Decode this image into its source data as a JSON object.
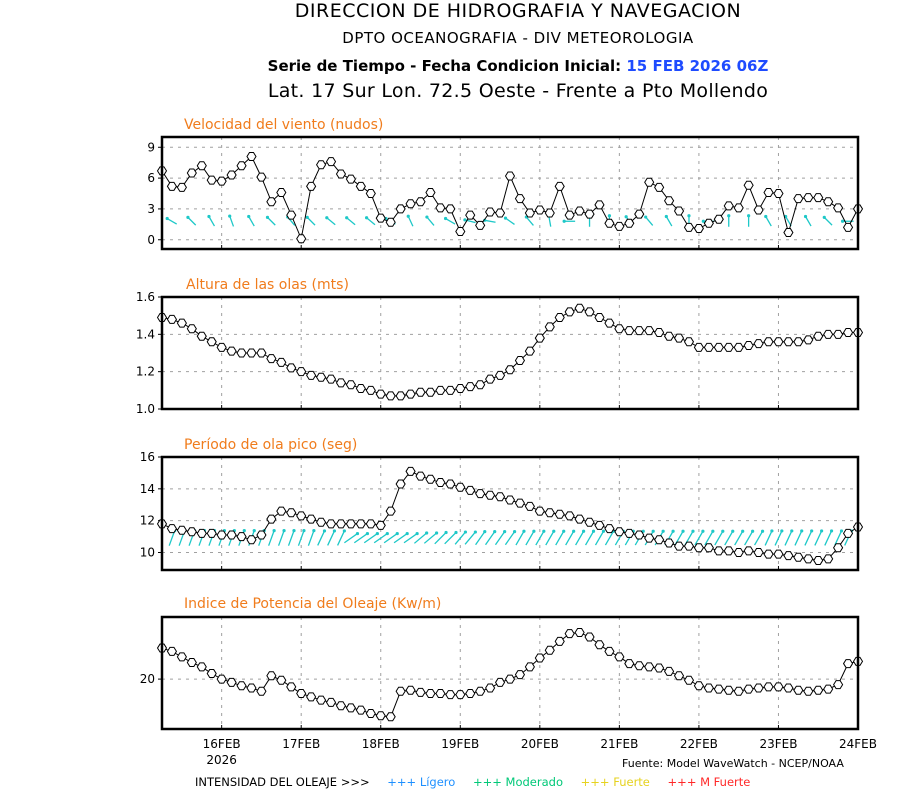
{
  "header": {
    "title": "DIRECCION DE HIDROGRAFIA Y NAVEGACION",
    "subtitle": "DPTO OCEANOGRAFIA - DIV METEOROLOGIA",
    "series_label": "Serie de Tiempo - Fecha Condicion Inicial:",
    "init_date": "15 FEB 2026 06Z",
    "location": "Lat. 17 Sur  Lon. 72.5 Oeste - Frente a Pto Mollendo"
  },
  "footer": {
    "source": "Fuente: Model WaveWatch - NCEP/NOAA",
    "intensity_label": "INTENSIDAD DEL OLEAJE >>>",
    "legend": [
      {
        "label": "+++ Lígero",
        "color": "#1e90ff"
      },
      {
        "label": "+++ Moderado",
        "color": "#00c878"
      },
      {
        "label": "+++ Fuerte",
        "color": "#e6d21e"
      },
      {
        "label": "+++ M Fuerte",
        "color": "#ff2828"
      }
    ]
  },
  "colors": {
    "panel_title": "#f07c1c",
    "arrows": "#1ec8c8",
    "line": "#000000",
    "grid": "#a0a0a0"
  },
  "chart_data": [
    {
      "type": "line",
      "title": "Velocidad del viento (nudos)",
      "xlabel": "",
      "ylabel": "",
      "x_start": "15 FEB 2026 06Z",
      "x_step_hours": 3,
      "xticks": [
        "16FEB",
        "17FEB",
        "18FEB",
        "19FEB",
        "20FEB",
        "21FEB",
        "22FEB",
        "23FEB",
        "24FEB"
      ],
      "xtick_year": "2026",
      "yticks": [
        "0",
        "3",
        "6",
        "9"
      ],
      "ylim": [
        -0.9,
        10
      ],
      "grid": true,
      "values": [
        6.7,
        5.2,
        5.1,
        6.5,
        7.2,
        5.8,
        5.7,
        6.3,
        7.2,
        8.1,
        6.1,
        3.7,
        4.6,
        2.4,
        0.1,
        5.2,
        7.3,
        7.6,
        6.4,
        5.9,
        5.2,
        4.5,
        2.1,
        1.7,
        3.0,
        3.5,
        3.7,
        4.6,
        3.1,
        3.0,
        0.8,
        2.4,
        1.4,
        2.7,
        2.6,
        6.2,
        4.0,
        2.6,
        2.9,
        2.6,
        5.2,
        2.4,
        2.8,
        2.5,
        3.4,
        1.6,
        1.3,
        1.6,
        2.5,
        5.6,
        5.1,
        3.8,
        2.8,
        1.2,
        1.1,
        1.6,
        2.0,
        3.3,
        3.1,
        5.3,
        2.9,
        4.6,
        4.5,
        0.7,
        4.0,
        4.1,
        4.1,
        3.7,
        3.1,
        1.2,
        3.0
      ],
      "direction_arrows": {
        "step_hours": 6,
        "level": 1.8,
        "toward_deg": [
          300,
          315,
          330,
          340,
          330,
          315,
          320,
          315,
          310,
          310,
          310,
          300,
          335,
          320,
          300,
          285,
          280,
          305,
          320,
          350,
          270,
          0,
          0,
          325,
          320,
          330,
          0,
          270,
          0,
          0,
          330,
          330,
          330,
          315,
          270,
          0
        ]
      }
    },
    {
      "type": "line",
      "title": "Altura de las olas (mts)",
      "xlabel": "",
      "ylabel": "",
      "yticks": [
        "1.0",
        "1.2",
        "1.4",
        "1.6"
      ],
      "ylim": [
        1.0,
        1.6
      ],
      "grid": true,
      "values": [
        1.49,
        1.48,
        1.46,
        1.43,
        1.39,
        1.36,
        1.33,
        1.31,
        1.3,
        1.3,
        1.3,
        1.27,
        1.25,
        1.22,
        1.2,
        1.18,
        1.17,
        1.16,
        1.14,
        1.13,
        1.11,
        1.1,
        1.08,
        1.07,
        1.07,
        1.08,
        1.09,
        1.09,
        1.1,
        1.1,
        1.11,
        1.12,
        1.13,
        1.16,
        1.18,
        1.21,
        1.26,
        1.31,
        1.38,
        1.44,
        1.49,
        1.52,
        1.54,
        1.52,
        1.49,
        1.46,
        1.43,
        1.42,
        1.42,
        1.42,
        1.41,
        1.39,
        1.38,
        1.36,
        1.33,
        1.33,
        1.33,
        1.33,
        1.33,
        1.34,
        1.35,
        1.36,
        1.36,
        1.36,
        1.36,
        1.37,
        1.39,
        1.4,
        1.4,
        1.41,
        1.41
      ]
    },
    {
      "type": "line",
      "title": "Período de ola pico (seg)",
      "xlabel": "",
      "ylabel": "",
      "yticks": [
        "10",
        "12",
        "14",
        "16"
      ],
      "ylim": [
        8.9,
        16
      ],
      "grid": true,
      "values": [
        11.8,
        11.5,
        11.4,
        11.3,
        11.2,
        11.2,
        11.1,
        11.1,
        11.0,
        10.8,
        11.1,
        12.1,
        12.6,
        12.5,
        12.3,
        12.1,
        11.9,
        11.8,
        11.8,
        11.8,
        11.8,
        11.8,
        11.7,
        12.6,
        14.3,
        15.1,
        14.8,
        14.6,
        14.4,
        14.3,
        14.1,
        13.9,
        13.7,
        13.6,
        13.5,
        13.3,
        13.1,
        12.9,
        12.6,
        12.5,
        12.4,
        12.3,
        12.1,
        11.9,
        11.7,
        11.5,
        11.3,
        11.2,
        11.1,
        10.9,
        10.8,
        10.6,
        10.4,
        10.4,
        10.3,
        10.3,
        10.1,
        10.1,
        10.0,
        10.1,
        10.0,
        9.9,
        9.9,
        9.8,
        9.7,
        9.6,
        9.5,
        9.6,
        10.3,
        11.2,
        11.6
      ],
      "direction_arrows": {
        "step_hours": 3,
        "level": 10.9,
        "toward_deg": [
          20,
          20,
          20,
          20,
          20,
          20,
          20,
          20,
          20,
          20,
          20,
          20,
          20,
          20,
          20,
          25,
          25,
          25,
          55,
          55,
          55,
          55,
          55,
          55,
          55,
          50,
          50,
          45,
          45,
          40,
          40,
          35,
          35,
          35,
          35,
          30,
          30,
          30,
          30,
          30,
          30,
          30,
          30,
          30,
          30,
          30,
          30,
          30,
          30,
          30,
          30,
          30,
          30,
          30,
          30,
          30,
          30,
          30,
          30,
          30,
          25,
          25,
          25,
          25,
          25,
          25,
          25,
          25,
          25,
          25
        ]
      }
    },
    {
      "type": "line",
      "title": "Indice de Potencia del Oleaje (Kw/m)",
      "xlabel": "",
      "ylabel": "",
      "yticks": [
        "20"
      ],
      "ylim": [
        15.5,
        25.6
      ],
      "grid": true,
      "values": [
        22.8,
        22.5,
        22.0,
        21.5,
        21.1,
        20.5,
        20.0,
        19.7,
        19.4,
        19.2,
        18.9,
        20.3,
        19.9,
        19.3,
        18.7,
        18.4,
        18.1,
        17.9,
        17.6,
        17.4,
        17.2,
        16.9,
        16.7,
        16.6,
        18.9,
        19.0,
        18.8,
        18.7,
        18.7,
        18.6,
        18.6,
        18.7,
        18.9,
        19.2,
        19.7,
        20.0,
        20.4,
        21.1,
        21.9,
        22.6,
        23.4,
        24.1,
        24.2,
        23.8,
        23.1,
        22.5,
        22.0,
        21.4,
        21.2,
        21.1,
        21.0,
        20.7,
        20.3,
        19.9,
        19.4,
        19.2,
        19.1,
        19.0,
        18.9,
        19.1,
        19.2,
        19.3,
        19.3,
        19.2,
        19.0,
        18.9,
        19.0,
        19.1,
        19.5,
        21.4,
        21.6
      ]
    }
  ]
}
